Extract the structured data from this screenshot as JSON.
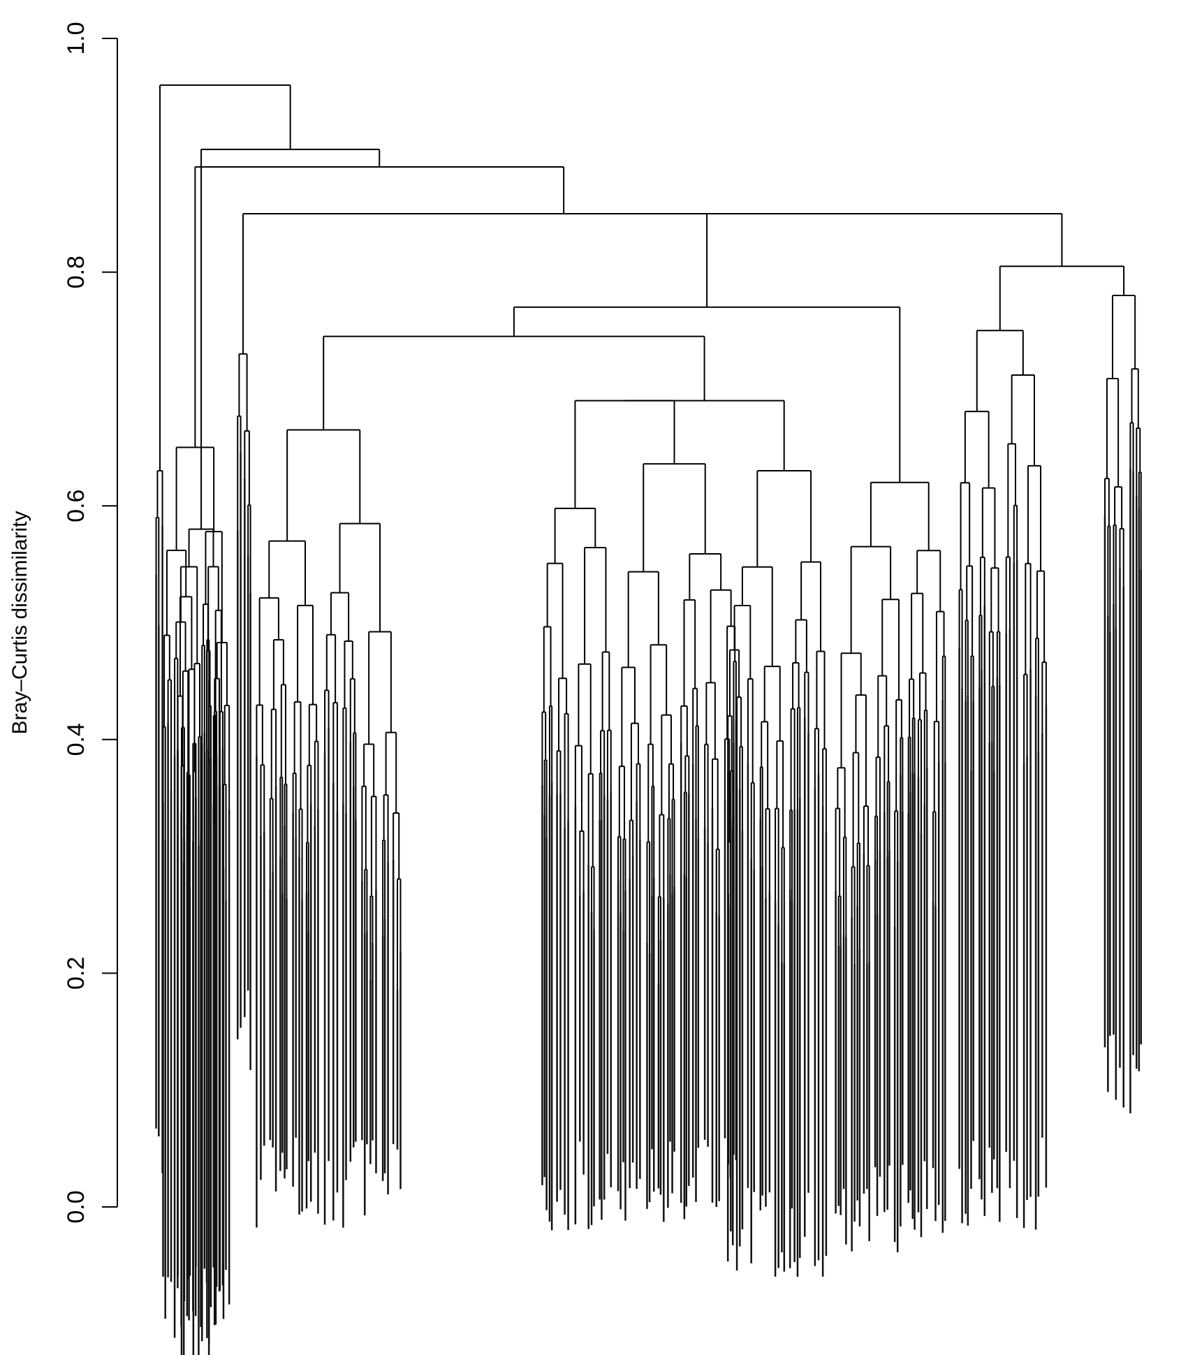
{
  "chart_data": {
    "type": "dendrogram",
    "title": "",
    "xlabel": "",
    "ylabel": "Bray–Curtis dissimilarity",
    "ylim": [
      -0.1,
      1.0
    ],
    "yticks": [
      {
        "value": 0.0,
        "label": "0.0"
      },
      {
        "value": 0.2,
        "label": "0.2"
      },
      {
        "value": 0.4,
        "label": "0.4"
      },
      {
        "value": 0.6,
        "label": "0.6"
      },
      {
        "value": 0.8,
        "label": "0.8"
      },
      {
        "value": 1.0,
        "label": "1.0"
      }
    ],
    "grid": false,
    "legend": "none",
    "main_merges": [
      {
        "height": 0.96,
        "description": "root merge"
      },
      {
        "height": 0.905
      },
      {
        "height": 0.89
      },
      {
        "height": 0.85
      },
      {
        "height": 0.805
      },
      {
        "height": 0.77
      },
      {
        "height": 0.745
      },
      {
        "height": 0.69
      },
      {
        "height": 0.665
      },
      {
        "height": 0.65
      }
    ]
  }
}
